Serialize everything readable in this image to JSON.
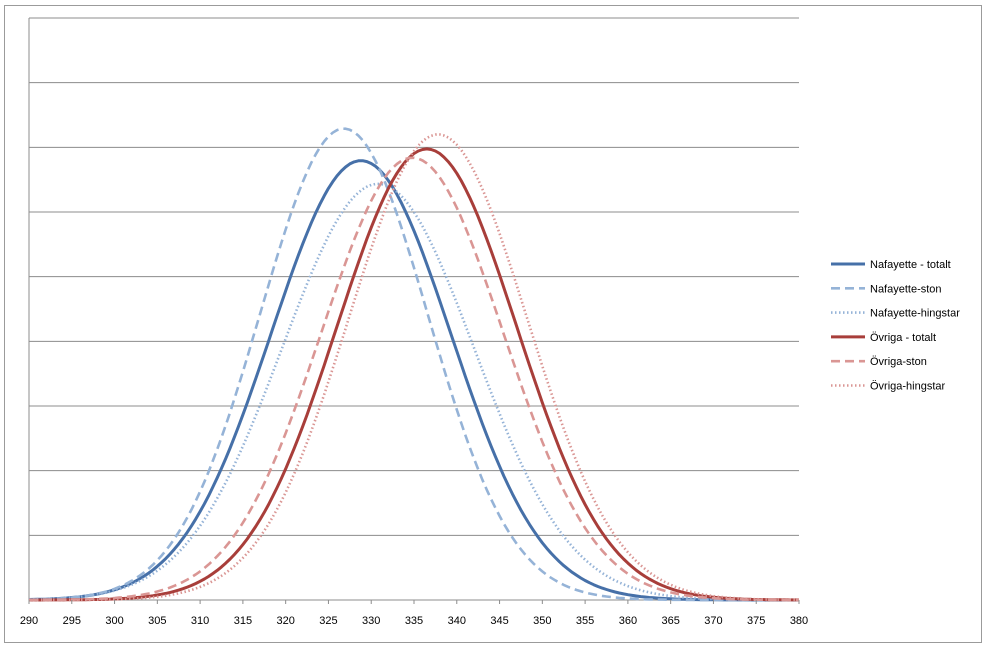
{
  "chart_data": {
    "type": "line",
    "title": "",
    "xlabel": "",
    "ylabel": "",
    "xlim": [
      290,
      380
    ],
    "ylim": [
      0,
      1
    ],
    "x_ticks": [
      290,
      295,
      300,
      305,
      310,
      315,
      320,
      325,
      330,
      335,
      340,
      345,
      350,
      355,
      360,
      365,
      370,
      375,
      380
    ],
    "y_gridlines": 9,
    "grid": true,
    "y_tick_labels_shown": false,
    "legend_position": "right",
    "series": [
      {
        "name": "Nafayette - totalt",
        "color": "#4670a8",
        "style": "solid",
        "mean": 328.8,
        "sd": 10.5,
        "peak": 0.755
      },
      {
        "name": "Nafayette-ston",
        "color": "#95b3d7",
        "style": "dashed",
        "mean": 326.8,
        "sd": 9.8,
        "peak": 0.81
      },
      {
        "name": "Nafayette-hingstar",
        "color": "#95b3d7",
        "style": "dotted",
        "mean": 330.8,
        "sd": 11.2,
        "peak": 0.715
      },
      {
        "name": "Övriga - totalt",
        "color": "#a83e3a",
        "style": "solid",
        "mean": 336.5,
        "sd": 10.5,
        "peak": 0.775
      },
      {
        "name": "Övriga-ston",
        "color": "#da9694",
        "style": "dashed",
        "mean": 334.8,
        "sd": 10.6,
        "peak": 0.76
      },
      {
        "name": "Övriga-hingstar",
        "color": "#da9694",
        "style": "dotted",
        "mean": 337.8,
        "sd": 10.4,
        "peak": 0.8
      }
    ]
  }
}
